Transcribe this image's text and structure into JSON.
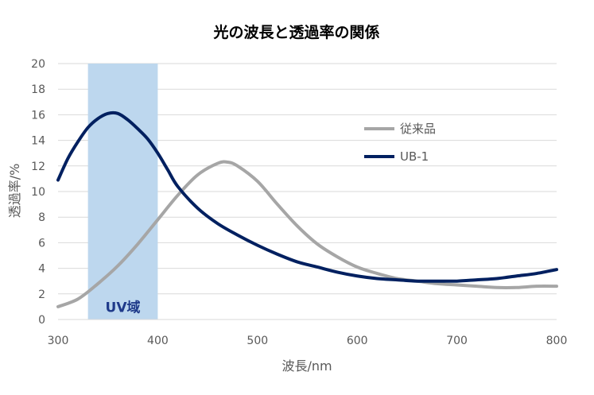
{
  "chart_data": {
    "type": "line",
    "title": "光の波長と透過率の関係",
    "xlabel": "波長/nm",
    "ylabel": "透過率/%",
    "xlim": [
      300,
      800
    ],
    "ylim": [
      0,
      20
    ],
    "x_ticks": [
      "300",
      "400",
      "500",
      "600",
      "700",
      "800"
    ],
    "y_ticks": [
      "0",
      "2",
      "4",
      "6",
      "8",
      "10",
      "12",
      "14",
      "16",
      "18",
      "20"
    ],
    "grid": true,
    "legend_position": "right",
    "highlight_region": {
      "label": "UV域",
      "x_range": [
        330,
        400
      ],
      "color": "#bdd7ee"
    },
    "series": [
      {
        "name": "従来品",
        "color": "#a6a6a6",
        "x": [
          300,
          320,
          340,
          360,
          380,
          400,
          420,
          440,
          460,
          470,
          480,
          500,
          520,
          540,
          560,
          580,
          600,
          620,
          640,
          660,
          680,
          700,
          720,
          740,
          760,
          780,
          800
        ],
        "y": [
          1.0,
          1.6,
          2.8,
          4.2,
          5.9,
          7.8,
          9.7,
          11.3,
          12.2,
          12.3,
          12.0,
          10.8,
          9.0,
          7.3,
          5.9,
          4.9,
          4.1,
          3.6,
          3.2,
          3.0,
          2.8,
          2.7,
          2.6,
          2.5,
          2.5,
          2.6,
          2.6
        ]
      },
      {
        "name": "UB-1",
        "color": "#002060",
        "x": [
          300,
          310,
          320,
          330,
          340,
          350,
          360,
          370,
          380,
          390,
          400,
          410,
          420,
          440,
          460,
          480,
          500,
          520,
          540,
          560,
          580,
          600,
          620,
          640,
          660,
          680,
          700,
          720,
          740,
          760,
          780,
          800
        ],
        "y": [
          10.9,
          12.6,
          13.9,
          15.0,
          15.7,
          16.1,
          16.1,
          15.6,
          14.9,
          14.1,
          13.0,
          11.7,
          10.4,
          8.7,
          7.5,
          6.6,
          5.8,
          5.1,
          4.5,
          4.1,
          3.7,
          3.4,
          3.2,
          3.1,
          3.0,
          3.0,
          3.0,
          3.1,
          3.2,
          3.4,
          3.6,
          3.9
        ]
      }
    ]
  }
}
